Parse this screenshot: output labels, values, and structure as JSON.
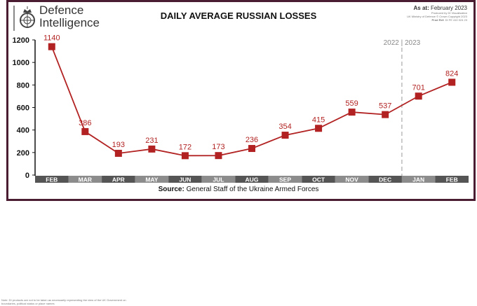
{
  "header": {
    "logo_line1": "Defence",
    "logo_line2": "Intelligence",
    "title": "DAILY AVERAGE RUSSIAN LOSSES",
    "as_at_label": "As at:",
    "as_at_value": "February 2023",
    "produced_by": "Produced by DI Visualisation",
    "copyright": "UK Ministry of Defence © Crown Copyright 2023",
    "prod_ref_label": "Prod Ref:",
    "prod_ref": "DI FE 410 024 23"
  },
  "footer": {
    "source_label": "Source:",
    "source": "General Staff of the Ukraine Armed Forces",
    "note": "Note: DI products are not to be taken as necessarily representing the view of the UK Government on boundaries, political status or place names"
  },
  "colors": {
    "line": "#b22222",
    "frame": "#4a1d33",
    "band_dark": "#555555",
    "band_light": "#8c8c8c"
  },
  "chart_data": {
    "type": "line",
    "title": "DAILY AVERAGE RUSSIAN LOSSES",
    "categories": [
      "FEB",
      "MAR",
      "APR",
      "MAY",
      "JUN",
      "JUL",
      "AUG",
      "SEP",
      "OCT",
      "NOV",
      "DEC",
      "JAN",
      "FEB"
    ],
    "values": [
      1140,
      386,
      193,
      231,
      172,
      173,
      236,
      354,
      415,
      559,
      537,
      701,
      824
    ],
    "ylim": [
      0,
      1200
    ],
    "yticks": [
      0,
      200,
      400,
      600,
      800,
      1000,
      1200
    ],
    "grid": false,
    "divider_label": "2022 | 2023",
    "divider_between": [
      "DEC",
      "JAN"
    ]
  }
}
